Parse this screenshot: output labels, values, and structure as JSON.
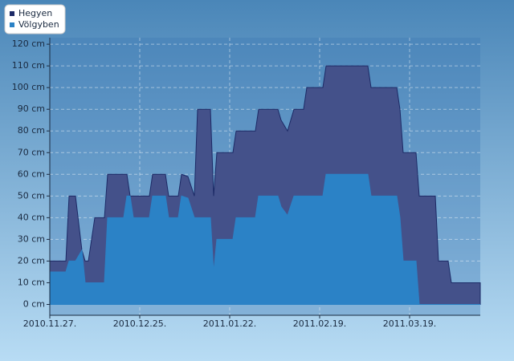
{
  "chart_data": {
    "type": "area",
    "x": [
      "2010-11-27",
      "2010-12-02",
      "2010-12-03",
      "2010-12-05",
      "2010-12-07",
      "2010-12-08",
      "2010-12-09",
      "2010-12-11",
      "2010-12-14",
      "2010-12-15",
      "2010-12-20",
      "2010-12-21",
      "2010-12-22",
      "2010-12-23",
      "2010-12-28",
      "2010-12-29",
      "2011-01-02",
      "2011-01-03",
      "2011-01-06",
      "2011-01-07",
      "2011-01-09",
      "2011-01-11",
      "2011-01-12",
      "2011-01-16",
      "2011-01-17",
      "2011-01-18",
      "2011-01-23",
      "2011-01-24",
      "2011-01-30",
      "2011-01-31",
      "2011-02-06",
      "2011-02-07",
      "2011-02-09",
      "2011-02-11",
      "2011-02-14",
      "2011-02-15",
      "2011-02-20",
      "2011-02-21",
      "2011-03-06",
      "2011-03-07",
      "2011-03-15",
      "2011-03-16",
      "2011-03-17",
      "2011-03-21",
      "2011-03-22",
      "2011-03-27",
      "2011-03-28",
      "2011-03-31",
      "2011-04-01",
      "2011-04-10"
    ],
    "series": [
      {
        "name": "Hegyen",
        "color": "#1c2a66",
        "fill": "#44518a",
        "values": [
          20,
          20,
          50,
          50,
          25,
          20,
          20,
          40,
          40,
          60,
          60,
          60,
          50,
          50,
          50,
          60,
          60,
          50,
          50,
          60,
          59,
          50,
          90,
          90,
          50,
          70,
          70,
          80,
          80,
          90,
          90,
          85,
          80,
          90,
          90,
          100,
          100,
          110,
          110,
          100,
          100,
          90,
          70,
          70,
          50,
          50,
          20,
          20,
          10,
          10
        ]
      },
      {
        "name": "Völgyben",
        "color": "#2b82c6",
        "fill": "#2b82c6",
        "values": [
          15,
          15,
          20,
          20,
          25,
          10,
          10,
          10,
          10,
          40,
          40,
          50,
          50,
          40,
          40,
          50,
          50,
          40,
          40,
          50,
          49,
          40,
          40,
          40,
          15,
          30,
          30,
          40,
          40,
          50,
          50,
          45,
          41,
          50,
          50,
          50,
          50,
          60,
          60,
          50,
          50,
          40,
          20,
          20,
          0,
          0,
          0,
          0,
          0,
          0
        ]
      }
    ],
    "xlim": [
      "2010-11-27",
      "2011-04-10"
    ],
    "xticks": [
      {
        "value": "2010-11-27",
        "label": "2010.11.27."
      },
      {
        "value": "2010-12-25",
        "label": "2010.12.25."
      },
      {
        "value": "2011-01-22",
        "label": "2011.01.22."
      },
      {
        "value": "2011-02-19",
        "label": "2011.02.19."
      },
      {
        "value": "2011-03-19",
        "label": "2011.03.19."
      }
    ],
    "ylim": [
      -5,
      123
    ],
    "yticks": [
      {
        "value": 0,
        "label": "0 cm"
      },
      {
        "value": 10,
        "label": "10 cm"
      },
      {
        "value": 20,
        "label": "20 cm"
      },
      {
        "value": 30,
        "label": "30 cm"
      },
      {
        "value": 40,
        "label": "40 cm"
      },
      {
        "value": 50,
        "label": "50 cm"
      },
      {
        "value": 60,
        "label": "60 cm"
      },
      {
        "value": 70,
        "label": "70 cm"
      },
      {
        "value": 80,
        "label": "80 cm"
      },
      {
        "value": 90,
        "label": "90 cm"
      },
      {
        "value": 100,
        "label": "100 cm"
      },
      {
        "value": 110,
        "label": "110 cm"
      },
      {
        "value": 120,
        "label": "120 cm"
      }
    ],
    "grid": true
  }
}
